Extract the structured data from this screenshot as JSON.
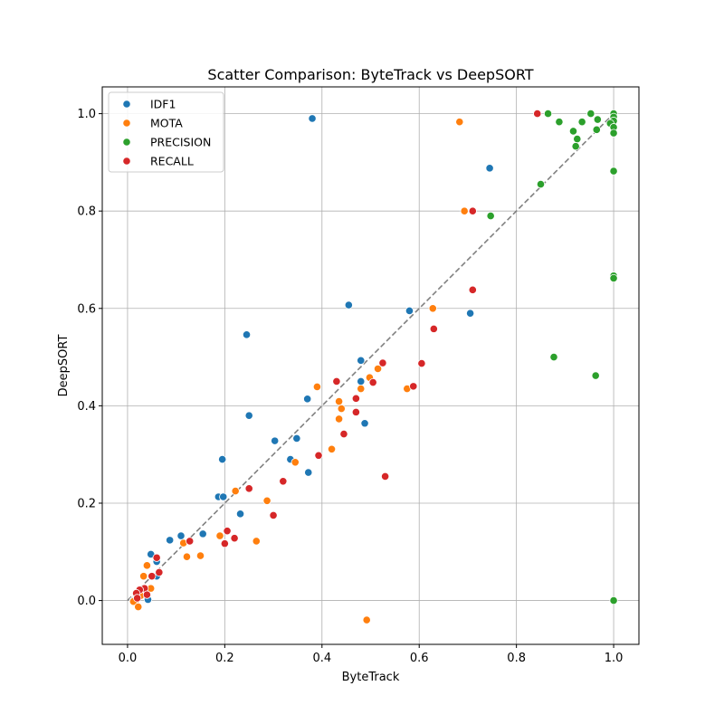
{
  "chart_data": {
    "type": "scatter",
    "title": "Scatter Comparison: ByteTrack vs DeepSORT",
    "xlabel": "ByteTrack",
    "ylabel": "DeepSORT",
    "xlim": [
      -0.052,
      1.052
    ],
    "ylim": [
      -0.09,
      1.055
    ],
    "xticks": [
      "0.0",
      "0.2",
      "0.4",
      "0.6",
      "0.8",
      "1.0"
    ],
    "yticks": [
      "0.0",
      "0.2",
      "0.4",
      "0.6",
      "0.8",
      "1.0"
    ],
    "grid": true,
    "legend_position": "top-left",
    "reference_line": {
      "x": [
        0,
        1
      ],
      "y": [
        0,
        1
      ],
      "style": "dashed",
      "color": "#808080"
    },
    "series": [
      {
        "name": "IDF1",
        "color": "#1f77b4",
        "points": [
          [
            0.38,
            0.99
          ],
          [
            0.745,
            0.888
          ],
          [
            0.455,
            0.607
          ],
          [
            0.58,
            0.595
          ],
          [
            0.705,
            0.59
          ],
          [
            0.245,
            0.546
          ],
          [
            0.48,
            0.493
          ],
          [
            0.48,
            0.45
          ],
          [
            0.37,
            0.414
          ],
          [
            0.25,
            0.38
          ],
          [
            0.488,
            0.364
          ],
          [
            0.303,
            0.328
          ],
          [
            0.348,
            0.333
          ],
          [
            0.335,
            0.29
          ],
          [
            0.195,
            0.29
          ],
          [
            0.372,
            0.263
          ],
          [
            0.187,
            0.213
          ],
          [
            0.197,
            0.213
          ],
          [
            0.232,
            0.178
          ],
          [
            0.11,
            0.133
          ],
          [
            0.155,
            0.137
          ],
          [
            0.087,
            0.124
          ],
          [
            0.048,
            0.095
          ],
          [
            0.06,
            0.08
          ],
          [
            0.06,
            0.05
          ],
          [
            0.038,
            0.01
          ],
          [
            0.042,
            0.002
          ],
          [
            0.018,
            0.005
          ],
          [
            0.012,
            0.0
          ],
          [
            0.025,
            0.015
          ]
        ]
      },
      {
        "name": "MOTA",
        "color": "#ff7f0e",
        "points": [
          [
            0.683,
            0.983
          ],
          [
            0.693,
            0.8
          ],
          [
            0.628,
            0.6
          ],
          [
            0.39,
            0.439
          ],
          [
            0.575,
            0.435
          ],
          [
            0.498,
            0.458
          ],
          [
            0.515,
            0.476
          ],
          [
            0.48,
            0.435
          ],
          [
            0.435,
            0.409
          ],
          [
            0.44,
            0.394
          ],
          [
            0.435,
            0.373
          ],
          [
            0.42,
            0.311
          ],
          [
            0.345,
            0.284
          ],
          [
            0.222,
            0.225
          ],
          [
            0.287,
            0.205
          ],
          [
            0.19,
            0.133
          ],
          [
            0.265,
            0.122
          ],
          [
            0.115,
            0.118
          ],
          [
            0.122,
            0.09
          ],
          [
            0.15,
            0.092
          ],
          [
            0.04,
            0.072
          ],
          [
            0.033,
            0.05
          ],
          [
            0.048,
            0.025
          ],
          [
            0.027,
            0.01
          ],
          [
            0.018,
            0.002
          ],
          [
            0.012,
            -0.002
          ],
          [
            0.022,
            -0.013
          ],
          [
            0.492,
            -0.04
          ]
        ]
      },
      {
        "name": "PRECISION",
        "color": "#2ca02c",
        "points": [
          [
            0.865,
            1.0
          ],
          [
            0.953,
            1.0
          ],
          [
            1.0,
            1.0
          ],
          [
            1.0,
            0.993
          ],
          [
            1.0,
            0.985
          ],
          [
            0.888,
            0.983
          ],
          [
            0.935,
            0.983
          ],
          [
            0.967,
            0.988
          ],
          [
            0.993,
            0.98
          ],
          [
            1.0,
            0.972
          ],
          [
            0.965,
            0.967
          ],
          [
            0.917,
            0.964
          ],
          [
            1.0,
            0.96
          ],
          [
            0.925,
            0.948
          ],
          [
            0.922,
            0.933
          ],
          [
            1.0,
            0.882
          ],
          [
            0.85,
            0.855
          ],
          [
            0.747,
            0.79
          ],
          [
            1.0,
            0.667
          ],
          [
            1.0,
            0.662
          ],
          [
            0.877,
            0.5
          ],
          [
            0.963,
            0.462
          ],
          [
            1.0,
            0.0
          ]
        ]
      },
      {
        "name": "RECALL",
        "color": "#d62728",
        "points": [
          [
            0.843,
            1.0
          ],
          [
            0.71,
            0.8
          ],
          [
            0.71,
            0.638
          ],
          [
            0.63,
            0.558
          ],
          [
            0.605,
            0.487
          ],
          [
            0.525,
            0.488
          ],
          [
            0.588,
            0.44
          ],
          [
            0.43,
            0.45
          ],
          [
            0.505,
            0.448
          ],
          [
            0.47,
            0.415
          ],
          [
            0.47,
            0.387
          ],
          [
            0.445,
            0.342
          ],
          [
            0.393,
            0.298
          ],
          [
            0.53,
            0.255
          ],
          [
            0.32,
            0.245
          ],
          [
            0.25,
            0.23
          ],
          [
            0.3,
            0.175
          ],
          [
            0.205,
            0.143
          ],
          [
            0.22,
            0.128
          ],
          [
            0.128,
            0.122
          ],
          [
            0.2,
            0.117
          ],
          [
            0.06,
            0.088
          ],
          [
            0.065,
            0.058
          ],
          [
            0.05,
            0.05
          ],
          [
            0.035,
            0.025
          ],
          [
            0.025,
            0.022
          ],
          [
            0.04,
            0.012
          ],
          [
            0.018,
            0.015
          ],
          [
            0.02,
            0.005
          ]
        ]
      }
    ]
  }
}
